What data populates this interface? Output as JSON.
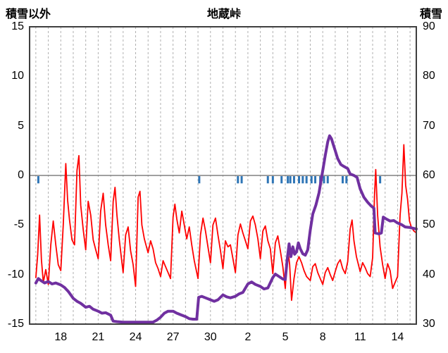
{
  "chart_data": {
    "type": "line",
    "title": "地蔵峠",
    "left_axis": {
      "label": "積雪以外",
      "min": -15,
      "max": 15,
      "ticks": [
        15,
        10,
        5,
        0,
        -5,
        -10,
        -15
      ]
    },
    "right_axis": {
      "label": "積雪",
      "min": 30,
      "max": 90,
      "ticks": [
        90,
        80,
        70,
        60,
        50,
        40,
        30
      ]
    },
    "x_axis": {
      "domain_days": [
        15.5,
        46.5
      ],
      "gridline_step_days": 1,
      "tick_days": [
        18,
        21,
        24,
        27,
        30,
        33,
        36,
        39,
        42,
        45
      ],
      "tick_labels": [
        "18",
        "21",
        "24",
        "27",
        "30",
        "2",
        "5",
        "8",
        "11",
        "14"
      ]
    },
    "grid": {
      "vertical_dashed": true,
      "color": "#b0b0b0"
    },
    "zero_line": {
      "value": 0,
      "color": "#808080"
    },
    "frame_color": "#3f3f3f",
    "event_ticks": {
      "name": "blue-ticks",
      "color": "#2e75b6",
      "y_from": 0,
      "y_to": -0.8,
      "days": [
        16.2,
        29.1,
        32.2,
        32.5,
        34.6,
        35.0,
        35.7,
        36.2,
        36.4,
        36.7,
        37.1,
        37.4,
        37.7,
        38.1,
        38.4,
        38.8,
        39.1,
        39.4,
        40.6,
        40.9,
        43.6
      ]
    },
    "series": [
      {
        "id": "red-line",
        "name": "積雪以外",
        "axis": "left",
        "color": "#ff0000",
        "width": 1.8,
        "points": [
          [
            16.0,
            -10.3
          ],
          [
            16.15,
            -8.0
          ],
          [
            16.3,
            -4.0
          ],
          [
            16.45,
            -8.5
          ],
          [
            16.6,
            -10.8
          ],
          [
            16.8,
            -9.5
          ],
          [
            17.0,
            -11.0
          ],
          [
            17.2,
            -7.0
          ],
          [
            17.4,
            -4.6
          ],
          [
            17.6,
            -7.0
          ],
          [
            17.8,
            -9.0
          ],
          [
            18.0,
            -9.6
          ],
          [
            18.2,
            -5.0
          ],
          [
            18.4,
            1.2
          ],
          [
            18.55,
            -2.5
          ],
          [
            18.7,
            -4.5
          ],
          [
            18.9,
            -6.5
          ],
          [
            19.1,
            -7.0
          ],
          [
            19.3,
            0.5
          ],
          [
            19.45,
            2.0
          ],
          [
            19.6,
            -3.0
          ],
          [
            19.8,
            -5.5
          ],
          [
            20.0,
            -7.5
          ],
          [
            20.2,
            -2.6
          ],
          [
            20.4,
            -4.0
          ],
          [
            20.6,
            -6.5
          ],
          [
            20.8,
            -7.5
          ],
          [
            21.0,
            -8.4
          ],
          [
            21.2,
            -3.6
          ],
          [
            21.4,
            -1.8
          ],
          [
            21.6,
            -5.0
          ],
          [
            21.8,
            -7.0
          ],
          [
            22.0,
            -8.6
          ],
          [
            22.2,
            -2.6
          ],
          [
            22.35,
            -1.2
          ],
          [
            22.5,
            -4.0
          ],
          [
            22.7,
            -6.6
          ],
          [
            23.0,
            -9.8
          ],
          [
            23.2,
            -6.0
          ],
          [
            23.4,
            -5.2
          ],
          [
            23.6,
            -7.6
          ],
          [
            23.8,
            -9.0
          ],
          [
            24.0,
            -11.2
          ],
          [
            24.2,
            -2.2
          ],
          [
            24.35,
            -1.6
          ],
          [
            24.5,
            -5.0
          ],
          [
            24.7,
            -6.4
          ],
          [
            25.0,
            -7.8
          ],
          [
            25.2,
            -6.6
          ],
          [
            25.4,
            -7.4
          ],
          [
            25.6,
            -8.8
          ],
          [
            25.8,
            -9.4
          ],
          [
            26.0,
            -10.2
          ],
          [
            26.2,
            -8.6
          ],
          [
            26.4,
            -9.2
          ],
          [
            26.6,
            -9.8
          ],
          [
            26.8,
            -10.4
          ],
          [
            27.0,
            -4.2
          ],
          [
            27.15,
            -2.9
          ],
          [
            27.3,
            -4.4
          ],
          [
            27.5,
            -5.8
          ],
          [
            27.7,
            -3.6
          ],
          [
            27.9,
            -5.0
          ],
          [
            28.1,
            -6.4
          ],
          [
            28.3,
            -5.2
          ],
          [
            28.5,
            -7.0
          ],
          [
            28.7,
            -8.6
          ],
          [
            29.0,
            -10.4
          ],
          [
            29.2,
            -6.0
          ],
          [
            29.4,
            -4.3
          ],
          [
            29.6,
            -5.6
          ],
          [
            29.8,
            -7.2
          ],
          [
            30.0,
            -8.8
          ],
          [
            30.2,
            -5.0
          ],
          [
            30.4,
            -4.3
          ],
          [
            30.6,
            -6.0
          ],
          [
            30.8,
            -7.6
          ],
          [
            31.0,
            -9.4
          ],
          [
            31.2,
            -6.6
          ],
          [
            31.4,
            -7.2
          ],
          [
            31.6,
            -7.0
          ],
          [
            31.8,
            -8.4
          ],
          [
            32.0,
            -9.8
          ],
          [
            32.2,
            -6.0
          ],
          [
            32.4,
            -4.9
          ],
          [
            32.6,
            -5.8
          ],
          [
            32.8,
            -6.6
          ],
          [
            33.0,
            -7.4
          ],
          [
            33.2,
            -4.6
          ],
          [
            33.4,
            -4.1
          ],
          [
            33.6,
            -5.0
          ],
          [
            33.8,
            -6.4
          ],
          [
            34.0,
            -8.4
          ],
          [
            34.2,
            -5.6
          ],
          [
            34.4,
            -5.1
          ],
          [
            34.6,
            -6.6
          ],
          [
            34.8,
            -7.4
          ],
          [
            35.0,
            -9.9
          ],
          [
            35.2,
            -6.8
          ],
          [
            35.4,
            -6.1
          ],
          [
            35.6,
            -7.6
          ],
          [
            35.8,
            -9.2
          ],
          [
            36.0,
            -11.4
          ],
          [
            36.2,
            -7.4
          ],
          [
            36.35,
            -9.0
          ],
          [
            36.5,
            -12.6
          ],
          [
            36.7,
            -10.4
          ],
          [
            36.9,
            -8.8
          ],
          [
            37.1,
            -8.2
          ],
          [
            37.3,
            -8.8
          ],
          [
            37.5,
            -9.6
          ],
          [
            37.7,
            -10.2
          ],
          [
            38.0,
            -10.6
          ],
          [
            38.2,
            -9.2
          ],
          [
            38.4,
            -8.9
          ],
          [
            38.6,
            -9.8
          ],
          [
            38.8,
            -10.4
          ],
          [
            39.0,
            -11.0
          ],
          [
            39.2,
            -9.8
          ],
          [
            39.4,
            -9.3
          ],
          [
            39.6,
            -10.0
          ],
          [
            39.8,
            -10.6
          ],
          [
            40.0,
            -9.7
          ],
          [
            40.2,
            -8.9
          ],
          [
            40.4,
            -8.5
          ],
          [
            40.6,
            -9.4
          ],
          [
            40.8,
            -9.9
          ],
          [
            41.0,
            -8.7
          ],
          [
            41.2,
            -5.4
          ],
          [
            41.35,
            -4.5
          ],
          [
            41.5,
            -6.6
          ],
          [
            41.7,
            -8.2
          ],
          [
            42.0,
            -9.7
          ],
          [
            42.2,
            -8.8
          ],
          [
            42.4,
            -9.3
          ],
          [
            42.6,
            -9.9
          ],
          [
            42.8,
            -10.2
          ],
          [
            43.0,
            -8.3
          ],
          [
            43.15,
            -2.0
          ],
          [
            43.25,
            0.6
          ],
          [
            43.4,
            -4.0
          ],
          [
            43.6,
            -7.2
          ],
          [
            43.8,
            -9.0
          ],
          [
            44.0,
            -10.4
          ],
          [
            44.2,
            -8.9
          ],
          [
            44.4,
            -9.6
          ],
          [
            44.6,
            -11.4
          ],
          [
            44.8,
            -10.8
          ],
          [
            45.0,
            -10.2
          ],
          [
            45.2,
            -4.0
          ],
          [
            45.35,
            -1.8
          ],
          [
            45.5,
            3.1
          ],
          [
            45.65,
            -1.0
          ],
          [
            45.8,
            -2.4
          ],
          [
            45.95,
            -4.6
          ],
          [
            46.1,
            -5.2
          ],
          [
            46.3,
            -5.6
          ],
          [
            46.5,
            -5.8
          ]
        ]
      },
      {
        "id": "purple-line",
        "name": "積雪",
        "axis": "right",
        "color": "#7030a0",
        "width": 4,
        "points": [
          [
            16.0,
            38.3
          ],
          [
            16.2,
            39.2
          ],
          [
            16.4,
            38.8
          ],
          [
            16.7,
            38.3
          ],
          [
            17.0,
            38.6
          ],
          [
            17.3,
            38.1
          ],
          [
            17.6,
            38.3
          ],
          [
            18.0,
            37.9
          ],
          [
            18.3,
            37.4
          ],
          [
            18.6,
            36.6
          ],
          [
            19.0,
            35.2
          ],
          [
            19.3,
            34.6
          ],
          [
            19.6,
            34.2
          ],
          [
            20.0,
            33.4
          ],
          [
            20.3,
            33.6
          ],
          [
            20.6,
            33.0
          ],
          [
            21.0,
            32.6
          ],
          [
            21.3,
            32.2
          ],
          [
            21.6,
            32.3
          ],
          [
            22.0,
            31.8
          ],
          [
            22.2,
            30.6
          ],
          [
            22.5,
            30.5
          ],
          [
            23.0,
            30.4
          ],
          [
            23.5,
            30.4
          ],
          [
            24.0,
            30.4
          ],
          [
            24.5,
            30.4
          ],
          [
            25.0,
            30.4
          ],
          [
            25.4,
            30.4
          ],
          [
            25.7,
            30.8
          ],
          [
            26.0,
            31.4
          ],
          [
            26.3,
            32.2
          ],
          [
            26.6,
            32.6
          ],
          [
            27.0,
            32.6
          ],
          [
            27.3,
            32.2
          ],
          [
            27.6,
            31.9
          ],
          [
            28.0,
            31.5
          ],
          [
            28.3,
            31.1
          ],
          [
            28.6,
            31.0
          ],
          [
            28.9,
            31.0
          ],
          [
            29.05,
            35.4
          ],
          [
            29.3,
            35.6
          ],
          [
            29.6,
            35.3
          ],
          [
            30.0,
            34.9
          ],
          [
            30.3,
            34.6
          ],
          [
            30.6,
            34.9
          ],
          [
            31.0,
            35.9
          ],
          [
            31.3,
            35.5
          ],
          [
            31.6,
            35.3
          ],
          [
            32.0,
            35.6
          ],
          [
            32.3,
            36.1
          ],
          [
            32.6,
            36.4
          ],
          [
            33.0,
            38.1
          ],
          [
            33.3,
            38.5
          ],
          [
            33.6,
            38.0
          ],
          [
            34.0,
            37.6
          ],
          [
            34.3,
            37.1
          ],
          [
            34.6,
            37.3
          ],
          [
            35.0,
            39.4
          ],
          [
            35.2,
            40.1
          ],
          [
            35.5,
            39.6
          ],
          [
            35.8,
            39.1
          ],
          [
            36.0,
            39.0
          ],
          [
            36.15,
            43.0
          ],
          [
            36.3,
            46.2
          ],
          [
            36.45,
            43.6
          ],
          [
            36.6,
            45.6
          ],
          [
            36.75,
            44.1
          ],
          [
            36.9,
            44.6
          ],
          [
            37.05,
            46.4
          ],
          [
            37.2,
            45.2
          ],
          [
            37.4,
            44.2
          ],
          [
            37.6,
            43.9
          ],
          [
            37.8,
            45.0
          ],
          [
            38.0,
            49.0
          ],
          [
            38.2,
            52.2
          ],
          [
            38.45,
            54.0
          ],
          [
            38.7,
            56.5
          ],
          [
            39.0,
            61.0
          ],
          [
            39.2,
            64.0
          ],
          [
            39.4,
            66.8
          ],
          [
            39.55,
            68.0
          ],
          [
            39.7,
            67.4
          ],
          [
            39.85,
            66.2
          ],
          [
            40.0,
            65.0
          ],
          [
            40.2,
            63.4
          ],
          [
            40.45,
            62.2
          ],
          [
            40.7,
            61.8
          ],
          [
            41.0,
            61.4
          ],
          [
            41.2,
            60.3
          ],
          [
            41.5,
            60.0
          ],
          [
            41.75,
            59.6
          ],
          [
            42.0,
            57.3
          ],
          [
            42.3,
            55.6
          ],
          [
            42.6,
            54.6
          ],
          [
            42.9,
            53.8
          ],
          [
            43.1,
            53.4
          ],
          [
            43.2,
            48.4
          ],
          [
            43.5,
            48.2
          ],
          [
            43.7,
            48.4
          ],
          [
            43.85,
            51.6
          ],
          [
            44.1,
            51.2
          ],
          [
            44.4,
            50.8
          ],
          [
            44.7,
            50.9
          ],
          [
            45.0,
            50.4
          ],
          [
            45.3,
            50.1
          ],
          [
            45.6,
            49.6
          ],
          [
            46.0,
            49.5
          ],
          [
            46.5,
            49.2
          ]
        ]
      }
    ]
  }
}
